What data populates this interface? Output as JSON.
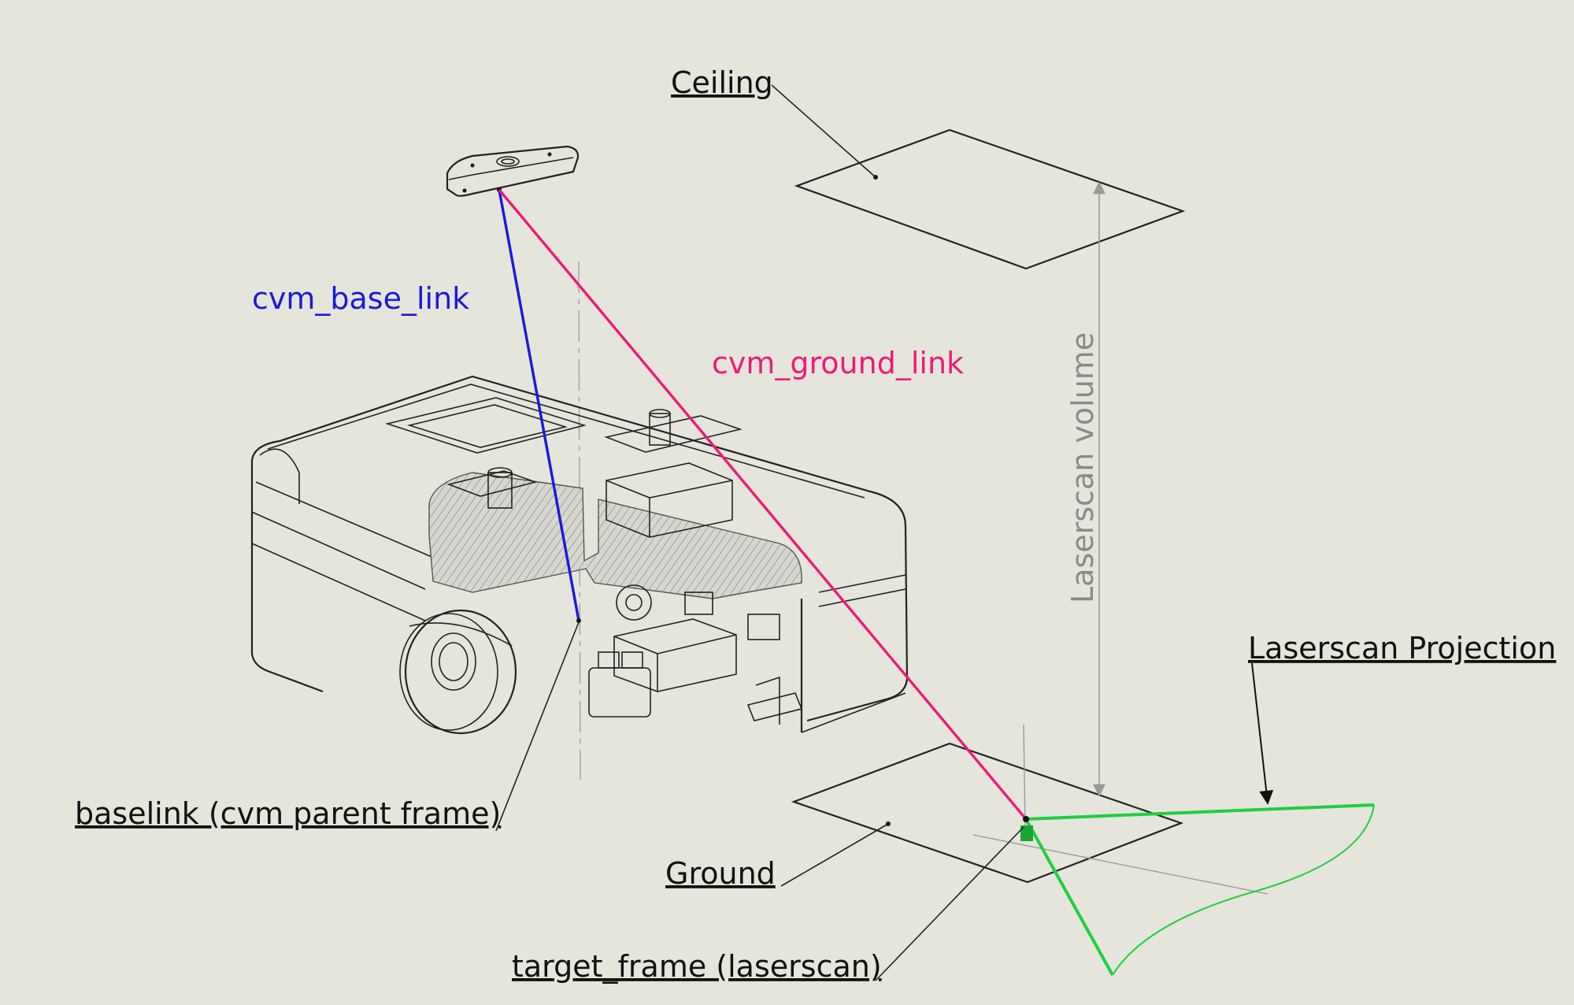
{
  "labels": {
    "ceiling": "Ceiling",
    "ground": "Ground",
    "cvm_base_link": "cvm_base_link",
    "cvm_ground_link": "cvm_ground_link",
    "laserscan_volume": "Laserscan volume",
    "laserscan_projection": "Laserscan Projection",
    "baselink": "baselink (cvm parent frame)",
    "target_frame": "target_frame (laserscan)"
  },
  "colors": {
    "background": "#e6e5dc",
    "ink": "#222222",
    "cvm_base_link": "#1a1adb",
    "cvm_ground_link": "#ee1a7a",
    "laserscan": "#1fcf3f",
    "volume_arrow": "#9a9a9a"
  }
}
